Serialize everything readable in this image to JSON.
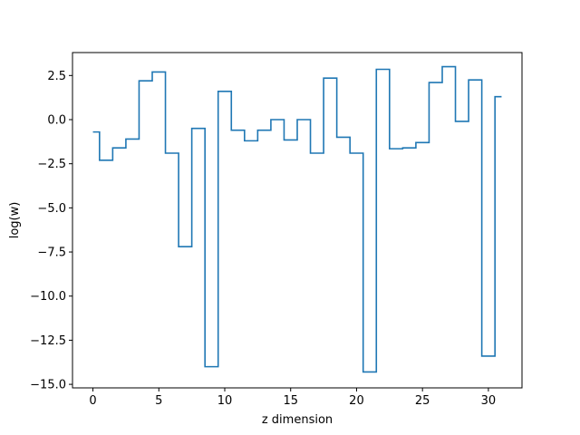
{
  "chart_data": {
    "type": "line",
    "drawstyle": "steps-mid",
    "title": "",
    "xlabel": "z dimension",
    "ylabel": "log(w)",
    "xlim": [
      -1.55,
      32.55
    ],
    "ylim": [
      -15.2,
      3.8
    ],
    "xticks": [
      0,
      5,
      10,
      15,
      20,
      25,
      30
    ],
    "yticks": [
      -15.0,
      -12.5,
      -10.0,
      -7.5,
      -5.0,
      -2.5,
      0.0,
      2.5
    ],
    "ytick_labels": [
      "−15.0",
      "−12.5",
      "−10.0",
      "−7.5",
      "−5.0",
      "−2.5",
      "0.0",
      "2.5"
    ],
    "line_color": "#1f77b4",
    "grid": false,
    "series": [
      {
        "x": [
          0,
          1,
          2,
          3,
          4,
          5,
          6,
          7,
          8,
          9,
          10,
          11,
          12,
          13,
          14,
          15,
          16,
          17,
          18,
          19,
          20,
          21,
          22,
          23,
          24,
          25,
          26,
          27,
          28,
          29,
          30,
          31
        ],
        "values": [
          -0.7,
          -2.3,
          -1.6,
          -1.1,
          2.2,
          2.7,
          -1.9,
          -7.2,
          -0.5,
          -14.0,
          1.6,
          -0.6,
          -1.2,
          -0.6,
          0.0,
          -1.15,
          0.0,
          -1.9,
          2.35,
          -1.0,
          -1.9,
          -14.3,
          2.85,
          -1.65,
          -1.6,
          -1.3,
          2.1,
          3.0,
          -0.1,
          2.25,
          -13.4,
          1.3
        ]
      }
    ]
  }
}
